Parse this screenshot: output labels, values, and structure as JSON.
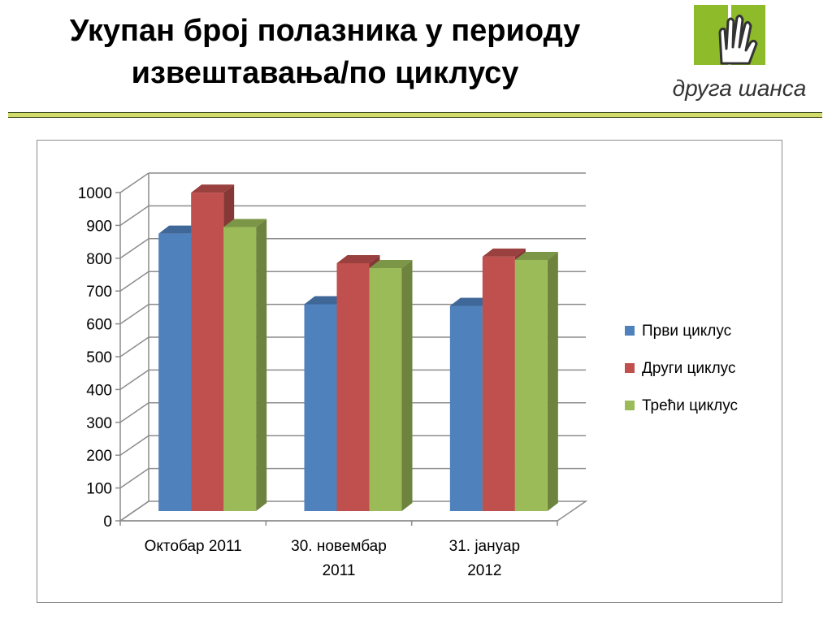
{
  "slide": {
    "title_line1": "Укупан број полазника у периоду",
    "title_line2": "извештавања/по циклусу",
    "logo_text": "друга шанса"
  },
  "colors": {
    "accent_rule": "#d1dc6a",
    "logo_green": "#8dbb2a",
    "logo_text": "#333333"
  },
  "chart_data": {
    "type": "bar",
    "title": "",
    "xlabel": "",
    "ylabel": "",
    "ylim": [
      0,
      1000
    ],
    "yticks": [
      0,
      100,
      200,
      300,
      400,
      500,
      600,
      700,
      800,
      900,
      1000
    ],
    "grid": true,
    "legend": "right",
    "categories": [
      [
        "Октобар 2011"
      ],
      [
        "30. новембар",
        "2011"
      ],
      [
        "31. јануар",
        "2012"
      ]
    ],
    "series": [
      {
        "name": "Први циклус",
        "color": "#4f81bd",
        "values": [
          845,
          630,
          625
        ]
      },
      {
        "name": "Други циклус",
        "color": "#c0504d",
        "values": [
          970,
          755,
          775
        ]
      },
      {
        "name": "Трећи циклус",
        "color": "#9bbb59",
        "values": [
          865,
          740,
          765
        ]
      }
    ]
  }
}
